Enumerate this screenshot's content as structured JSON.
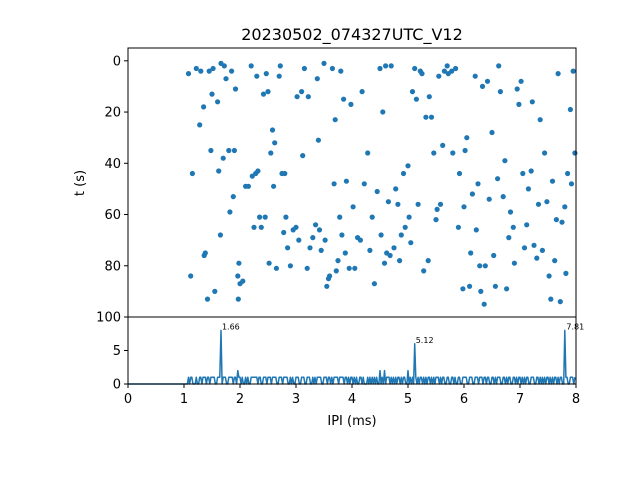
{
  "chart_data": [
    {
      "type": "scatter",
      "title": "20230502_074327UTC_V12",
      "xlabel": "",
      "ylabel": "t (s)",
      "xlim": [
        0,
        8
      ],
      "ylim": [
        100,
        -5
      ],
      "y_inverted": true,
      "yticks": [
        0,
        20,
        40,
        60,
        80,
        100
      ],
      "color": "#1f77b4",
      "points": [
        [
          1.08,
          5
        ],
        [
          1.12,
          84
        ],
        [
          1.15,
          44
        ],
        [
          1.22,
          3
        ],
        [
          1.3,
          4
        ],
        [
          1.28,
          25
        ],
        [
          1.35,
          18
        ],
        [
          1.36,
          76
        ],
        [
          1.38,
          75
        ],
        [
          1.42,
          93
        ],
        [
          1.45,
          4
        ],
        [
          1.48,
          35
        ],
        [
          1.5,
          13
        ],
        [
          1.52,
          3
        ],
        [
          1.55,
          90
        ],
        [
          1.6,
          16
        ],
        [
          1.62,
          43
        ],
        [
          1.65,
          68
        ],
        [
          1.66,
          1
        ],
        [
          1.7,
          38
        ],
        [
          1.72,
          2
        ],
        [
          1.75,
          7
        ],
        [
          1.8,
          35
        ],
        [
          1.82,
          59
        ],
        [
          1.85,
          4
        ],
        [
          1.88,
          53
        ],
        [
          1.9,
          35
        ],
        [
          1.92,
          11
        ],
        [
          1.96,
          84
        ],
        [
          1.97,
          93
        ],
        [
          1.98,
          79
        ],
        [
          2.0,
          87
        ],
        [
          2.05,
          86
        ],
        [
          2.1,
          49
        ],
        [
          2.15,
          49
        ],
        [
          2.2,
          2
        ],
        [
          2.22,
          45
        ],
        [
          2.25,
          65
        ],
        [
          2.28,
          44
        ],
        [
          2.3,
          6
        ],
        [
          2.32,
          43
        ],
        [
          2.35,
          61
        ],
        [
          2.38,
          65
        ],
        [
          2.42,
          13
        ],
        [
          2.45,
          61
        ],
        [
          2.47,
          5
        ],
        [
          2.5,
          12
        ],
        [
          2.52,
          79
        ],
        [
          2.55,
          36
        ],
        [
          2.58,
          27
        ],
        [
          2.6,
          49
        ],
        [
          2.62,
          32
        ],
        [
          2.65,
          81
        ],
        [
          2.7,
          6
        ],
        [
          2.72,
          2
        ],
        [
          2.75,
          44
        ],
        [
          2.78,
          67
        ],
        [
          2.8,
          44
        ],
        [
          2.82,
          61
        ],
        [
          2.85,
          73
        ],
        [
          2.9,
          80
        ],
        [
          2.95,
          66
        ],
        [
          3.0,
          65
        ],
        [
          3.02,
          14
        ],
        [
          3.05,
          70
        ],
        [
          3.1,
          12
        ],
        [
          3.12,
          37
        ],
        [
          3.15,
          3
        ],
        [
          3.2,
          81
        ],
        [
          3.22,
          14
        ],
        [
          3.25,
          73
        ],
        [
          3.3,
          69
        ],
        [
          3.35,
          64
        ],
        [
          3.38,
          7
        ],
        [
          3.4,
          31
        ],
        [
          3.42,
          66
        ],
        [
          3.45,
          74
        ],
        [
          3.5,
          1
        ],
        [
          3.52,
          70
        ],
        [
          3.55,
          88
        ],
        [
          3.58,
          85
        ],
        [
          3.6,
          84
        ],
        [
          3.65,
          3
        ],
        [
          3.68,
          48
        ],
        [
          3.7,
          23
        ],
        [
          3.72,
          82
        ],
        [
          3.75,
          78
        ],
        [
          3.78,
          61
        ],
        [
          3.8,
          4
        ],
        [
          3.82,
          68
        ],
        [
          3.85,
          15
        ],
        [
          3.88,
          75
        ],
        [
          3.9,
          47
        ],
        [
          3.95,
          81
        ],
        [
          3.98,
          17
        ],
        [
          4.02,
          57
        ],
        [
          4.05,
          81
        ],
        [
          4.1,
          69
        ],
        [
          4.15,
          70
        ],
        [
          4.18,
          12
        ],
        [
          4.22,
          48
        ],
        [
          4.28,
          36
        ],
        [
          4.32,
          74
        ],
        [
          4.36,
          61
        ],
        [
          4.4,
          87
        ],
        [
          4.45,
          51
        ],
        [
          4.5,
          3
        ],
        [
          4.52,
          68
        ],
        [
          4.55,
          20
        ],
        [
          4.58,
          79
        ],
        [
          4.6,
          2
        ],
        [
          4.62,
          75
        ],
        [
          4.65,
          55
        ],
        [
          4.68,
          76
        ],
        [
          4.7,
          2
        ],
        [
          4.75,
          73
        ],
        [
          4.78,
          50
        ],
        [
          4.82,
          56
        ],
        [
          4.85,
          78
        ],
        [
          4.88,
          68
        ],
        [
          4.92,
          44
        ],
        [
          4.95,
          65
        ],
        [
          5.0,
          41
        ],
        [
          5.02,
          61
        ],
        [
          5.05,
          71
        ],
        [
          5.08,
          12
        ],
        [
          5.12,
          3
        ],
        [
          5.15,
          15
        ],
        [
          5.18,
          56
        ],
        [
          5.22,
          4
        ],
        [
          5.25,
          5
        ],
        [
          5.28,
          82
        ],
        [
          5.32,
          22
        ],
        [
          5.36,
          78
        ],
        [
          5.38,
          14
        ],
        [
          5.42,
          22
        ],
        [
          5.46,
          36
        ],
        [
          5.5,
          62
        ],
        [
          5.52,
          58
        ],
        [
          5.55,
          6
        ],
        [
          5.58,
          56
        ],
        [
          5.62,
          33
        ],
        [
          5.65,
          4
        ],
        [
          5.7,
          2
        ],
        [
          5.72,
          5
        ],
        [
          5.78,
          4
        ],
        [
          5.8,
          36
        ],
        [
          5.85,
          3
        ],
        [
          5.9,
          65
        ],
        [
          5.92,
          44
        ],
        [
          5.98,
          89
        ],
        [
          6.0,
          57
        ],
        [
          6.02,
          35
        ],
        [
          6.05,
          30
        ],
        [
          6.1,
          88
        ],
        [
          6.12,
          75
        ],
        [
          6.15,
          52
        ],
        [
          6.2,
          6
        ],
        [
          6.22,
          66
        ],
        [
          6.25,
          48
        ],
        [
          6.28,
          80
        ],
        [
          6.3,
          90
        ],
        [
          6.33,
          10
        ],
        [
          6.36,
          95
        ],
        [
          6.38,
          80
        ],
        [
          6.42,
          8
        ],
        [
          6.45,
          54
        ],
        [
          6.5,
          28
        ],
        [
          6.53,
          76
        ],
        [
          6.56,
          88
        ],
        [
          6.6,
          46
        ],
        [
          6.62,
          2
        ],
        [
          6.65,
          12
        ],
        [
          6.7,
          53
        ],
        [
          6.73,
          39
        ],
        [
          6.76,
          89
        ],
        [
          6.8,
          69
        ],
        [
          6.83,
          59
        ],
        [
          6.88,
          65
        ],
        [
          6.9,
          79
        ],
        [
          6.95,
          11
        ],
        [
          6.98,
          17
        ],
        [
          7.02,
          8
        ],
        [
          7.05,
          44
        ],
        [
          7.08,
          73
        ],
        [
          7.12,
          64
        ],
        [
          7.15,
          50
        ],
        [
          7.2,
          43
        ],
        [
          7.22,
          16
        ],
        [
          7.25,
          72
        ],
        [
          7.3,
          77
        ],
        [
          7.33,
          56
        ],
        [
          7.36,
          23
        ],
        [
          7.4,
          74
        ],
        [
          7.44,
          36
        ],
        [
          7.48,
          55
        ],
        [
          7.52,
          84
        ],
        [
          7.55,
          93
        ],
        [
          7.58,
          47
        ],
        [
          7.62,
          78
        ],
        [
          7.65,
          62
        ],
        [
          7.68,
          5
        ],
        [
          7.72,
          94
        ],
        [
          7.75,
          63
        ],
        [
          7.8,
          57
        ],
        [
          7.82,
          83
        ],
        [
          7.85,
          44
        ],
        [
          7.9,
          19
        ],
        [
          7.92,
          48
        ],
        [
          7.95,
          4
        ],
        [
          7.98,
          36
        ]
      ]
    },
    {
      "type": "line",
      "xlabel": "IPI (ms)",
      "ylabel": "",
      "xlim": [
        0,
        8
      ],
      "ylim": [
        0,
        10
      ],
      "xticks": [
        0,
        1,
        2,
        3,
        4,
        5,
        6,
        7,
        8
      ],
      "yticks": [
        0,
        5
      ],
      "color": "#1f77b4",
      "peak_annotations": [
        {
          "x": 1.66,
          "y": 8,
          "label": "1.66"
        },
        {
          "x": 5.12,
          "y": 6,
          "label": "5.12"
        },
        {
          "x": 7.81,
          "y": 8,
          "label": "7.81"
        }
      ]
    }
  ]
}
